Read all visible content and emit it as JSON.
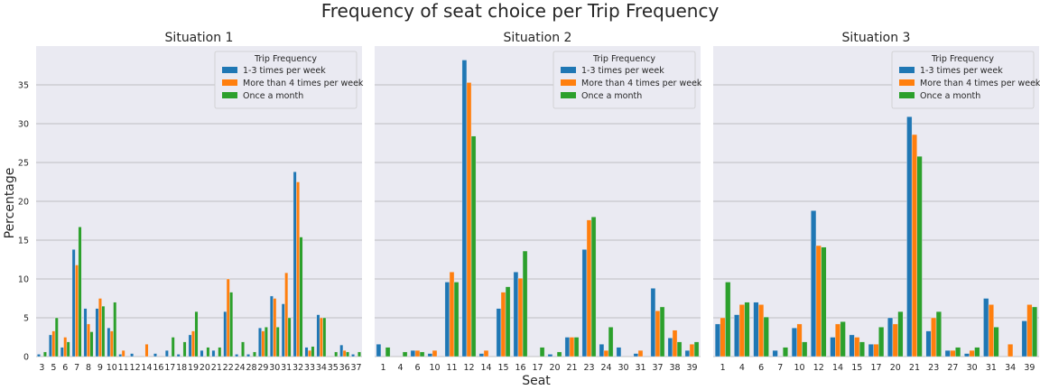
{
  "title": "Frequency of seat choice per Trip Frequency",
  "xlabel": "Seat",
  "ylabel": "Percentage",
  "legend_title": "Trip Frequency",
  "colors": {
    "axes_bg": "#eaeaf2",
    "grid": "#b0b0b0"
  },
  "chart_data": [
    {
      "type": "bar",
      "title": "Situation 1",
      "categories": [
        "3",
        "5",
        "6",
        "7",
        "8",
        "9",
        "10",
        "11",
        "12",
        "14",
        "16",
        "17",
        "18",
        "19",
        "20",
        "21",
        "22",
        "24",
        "28",
        "29",
        "30",
        "31",
        "32",
        "33",
        "34",
        "35",
        "36",
        "37"
      ],
      "ylim": [
        0,
        40
      ],
      "yticks": [
        0,
        5,
        10,
        15,
        20,
        25,
        30,
        35
      ],
      "grid": true,
      "legend": "top-right",
      "series": [
        {
          "name": "1-3 times per week",
          "color": "#1f77b4",
          "values": [
            0.3,
            2.8,
            1.2,
            13.8,
            6.2,
            6.2,
            3.7,
            0.3,
            0.4,
            0,
            0.4,
            0.8,
            0.3,
            2.8,
            0.8,
            0.8,
            5.8,
            0.3,
            0.3,
            3.7,
            7.8,
            6.8,
            23.8,
            1.2,
            5.4,
            0,
            1.5,
            0.3
          ]
        },
        {
          "name": "More than 4 times per week",
          "color": "#ff7f0e",
          "values": [
            0,
            3.3,
            2.5,
            11.8,
            4.2,
            7.5,
            3.3,
            0.8,
            0,
            1.6,
            0,
            0,
            0,
            3.3,
            0,
            0,
            10.0,
            0,
            0,
            3.3,
            7.5,
            10.8,
            22.5,
            0.8,
            5.0,
            0,
            0.8,
            0
          ]
        },
        {
          "name": "Once a month",
          "color": "#2ca02c",
          "values": [
            0.6,
            5.0,
            1.9,
            16.7,
            3.2,
            6.5,
            7.0,
            0,
            0,
            0,
            0,
            2.5,
            1.9,
            5.8,
            1.2,
            1.2,
            8.3,
            1.9,
            0.6,
            3.8,
            3.8,
            5.0,
            15.4,
            1.3,
            5.0,
            0.6,
            0.6,
            0.6
          ]
        }
      ]
    },
    {
      "type": "bar",
      "title": "Situation 2",
      "categories": [
        "1",
        "4",
        "6",
        "10",
        "11",
        "12",
        "14",
        "15",
        "16",
        "17",
        "20",
        "21",
        "23",
        "24",
        "30",
        "31",
        "37",
        "38",
        "39"
      ],
      "ylim": [
        0,
        40
      ],
      "yticks": [
        0,
        5,
        10,
        15,
        20,
        25,
        30,
        35
      ],
      "grid": true,
      "legend": "top-right",
      "series": [
        {
          "name": "1-3 times per week",
          "color": "#1f77b4",
          "values": [
            1.6,
            0,
            0.8,
            0.4,
            9.6,
            38.2,
            0.4,
            6.2,
            10.9,
            0,
            0.3,
            2.5,
            13.8,
            1.6,
            1.2,
            0.4,
            8.8,
            2.4,
            0.8
          ]
        },
        {
          "name": "More than 4 times per week",
          "color": "#ff7f0e",
          "values": [
            0,
            0,
            0.8,
            0.8,
            10.9,
            35.3,
            0.8,
            8.3,
            10.1,
            0,
            0,
            2.5,
            17.6,
            0.8,
            0,
            0.8,
            5.9,
            3.4,
            1.6
          ]
        },
        {
          "name": "Once a month",
          "color": "#2ca02c",
          "values": [
            1.2,
            0.6,
            0.6,
            0,
            9.6,
            28.4,
            0,
            9.0,
            13.6,
            1.2,
            0.6,
            2.5,
            18.0,
            3.8,
            0,
            0,
            6.4,
            1.9,
            1.9
          ]
        }
      ]
    },
    {
      "type": "bar",
      "title": "Situation 3",
      "categories": [
        "1",
        "4",
        "6",
        "7",
        "10",
        "12",
        "14",
        "15",
        "17",
        "20",
        "21",
        "23",
        "27",
        "30",
        "31",
        "34",
        "39"
      ],
      "ylim": [
        0,
        40
      ],
      "yticks": [
        0,
        5,
        10,
        15,
        20,
        25,
        30,
        35
      ],
      "grid": true,
      "legend": "top-right",
      "series": [
        {
          "name": "1-3 times per week",
          "color": "#1f77b4",
          "values": [
            4.2,
            5.4,
            7.0,
            0.8,
            3.7,
            18.8,
            2.5,
            2.8,
            1.6,
            5.0,
            30.9,
            3.3,
            0.8,
            0.4,
            7.5,
            0,
            4.6
          ]
        },
        {
          "name": "More than 4 times per week",
          "color": "#ff7f0e",
          "values": [
            5.0,
            6.7,
            6.7,
            0,
            4.2,
            14.3,
            4.2,
            2.5,
            1.6,
            4.2,
            28.6,
            5.0,
            0.8,
            0.8,
            6.7,
            1.6,
            6.7
          ]
        },
        {
          "name": "Once a month",
          "color": "#2ca02c",
          "values": [
            9.6,
            7.0,
            5.1,
            1.2,
            1.9,
            14.1,
            4.5,
            1.9,
            3.8,
            5.8,
            25.8,
            5.8,
            1.2,
            1.2,
            3.8,
            0,
            6.4
          ]
        }
      ]
    }
  ]
}
